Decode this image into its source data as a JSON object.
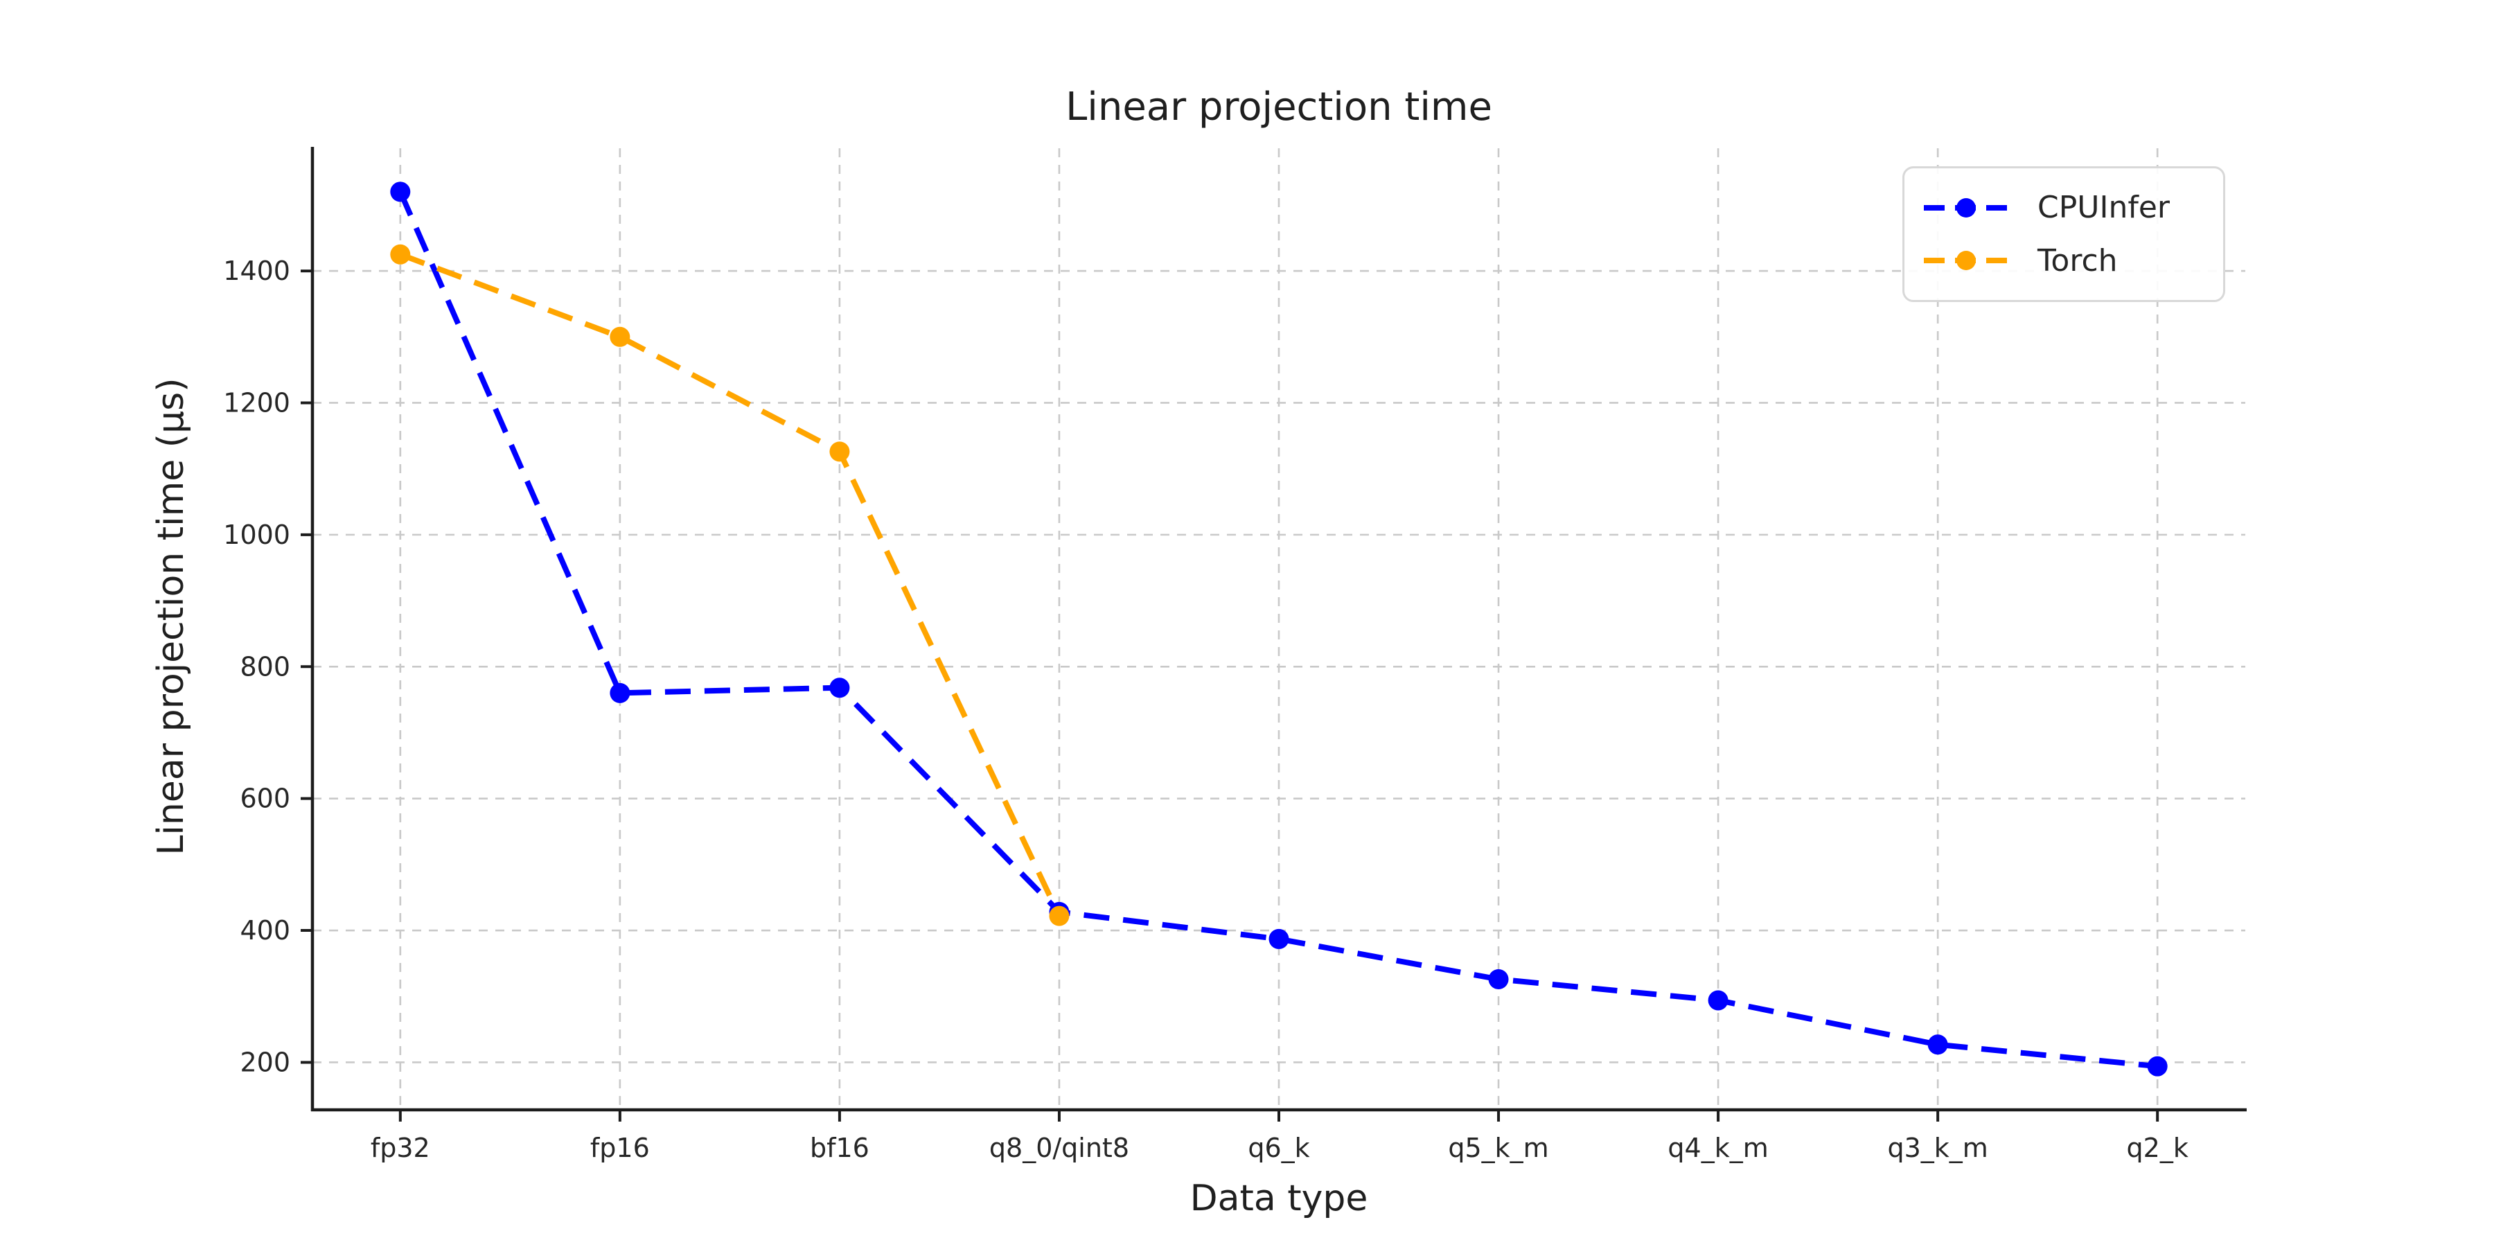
{
  "chart_data": {
    "type": "line",
    "title": "Linear projection time",
    "xlabel": "Data type",
    "ylabel": "Linear projection time (µs)",
    "categories": [
      "fp32",
      "fp16",
      "bf16",
      "q8_0/qint8",
      "q6_k",
      "q5_k_m",
      "q4_k_m",
      "q3_k_m",
      "q2_k"
    ],
    "series": [
      {
        "name": "CPUInfer",
        "color": "#0000ff",
        "values": [
          1520,
          760,
          768,
          428,
          387,
          326,
          294,
          227,
          194
        ]
      },
      {
        "name": "Torch",
        "color": "#ffa500",
        "values": [
          1425,
          1300,
          1126,
          422
        ]
      }
    ],
    "yticks": [
      200,
      400,
      600,
      800,
      1000,
      1200,
      1400
    ],
    "ylim": [
      128,
      1586
    ],
    "x_margin_units": 0.4,
    "grid": true,
    "grid_style": "dashed",
    "line_style": "dashed",
    "marker": "circle",
    "legend_position": "upper right",
    "colors": {
      "grid": "#c9c9c9",
      "spine": "#1c1c1c",
      "tick_label": "#262626",
      "background": "#ffffff"
    }
  }
}
